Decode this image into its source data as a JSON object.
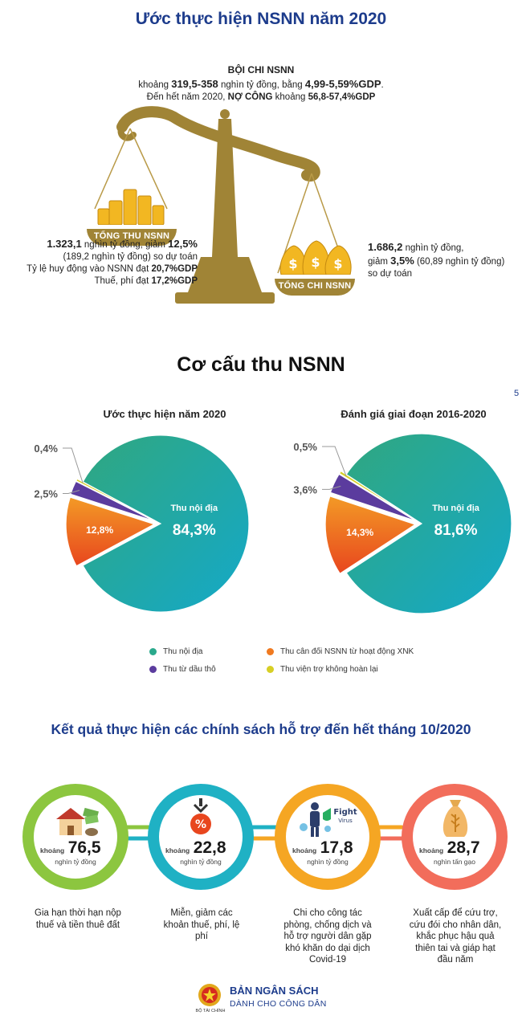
{
  "section1": {
    "title": "Ước thực hiện NSNN năm 2020",
    "deficit": {
      "heading": "BỘI CHI NSNN",
      "line1_pre": "khoảng ",
      "line1_val": "319,5-358",
      "line1_mid": " nghìn tỷ đồng, bằng ",
      "line1_pct": "4,99-5,59%GDP",
      "line1_end": ".",
      "line2_pre": "Đến hết năm 2020, ",
      "line2_debt": "NỢ CÔNG",
      "line2_mid": " khoảng ",
      "line2_val": "56,8-57,4%GDP"
    },
    "revenue": {
      "tag": "TỔNG THU NSNN",
      "val": "1.323,1",
      "mid": " nghìn tỷ đồng, giảm ",
      "pct": "12,5%",
      "line2": "(189,2 nghìn tỷ đồng) so dự toán",
      "line3_pre": "Tỷ lệ huy động vào NSNN đạt ",
      "line3_val": "20,7%GDP",
      "line4_pre": "Thuế, phí đạt ",
      "line4_val": "17,2%GDP"
    },
    "expenditure": {
      "tag": "TỔNG CHI NSNN",
      "val": "1.686,2",
      "mid": " nghìn tỷ đồng,",
      "line2_pre": "giảm ",
      "line2_pct": "3,5%",
      "line2_rest": " (60,89 nghìn tỷ đồng)",
      "line3": "so dự toán"
    }
  },
  "section2": {
    "title": "Cơ cấu thu NSNN",
    "page_num": "5",
    "inside_label": "Thu nội địa",
    "legend": [
      {
        "label": "Thu nội địa",
        "color": "#2aa98c"
      },
      {
        "label": "Thu cân đối NSNN từ hoạt động XNK",
        "color": "#f07a20"
      },
      {
        "label": "Thu từ dầu thô",
        "color": "#5b3c9e"
      },
      {
        "label": "Thu viện trợ không hoàn lại",
        "color": "#d7cf25"
      }
    ]
  },
  "chart_data": [
    {
      "type": "pie",
      "title": "Ước thực hiện năm 2020",
      "categories": [
        "Thu nội địa",
        "Thu cân đối NSNN từ hoạt động XNK",
        "Thu từ dầu thô",
        "Thu viện trợ không hoàn lại"
      ],
      "values": [
        84.3,
        12.8,
        2.5,
        0.4
      ],
      "labels": [
        "84,3%",
        "12,8%",
        "2,5%",
        "0,4%"
      ]
    },
    {
      "type": "pie",
      "title": "Đánh giá giai đoạn 2016-2020",
      "categories": [
        "Thu nội địa",
        "Thu cân đối NSNN từ hoạt động XNK",
        "Thu từ dầu thô",
        "Thu viện trợ không hoàn lại"
      ],
      "values": [
        81.6,
        14.3,
        3.6,
        0.5
      ],
      "labels": [
        "81,6%",
        "14,3%",
        "3,6%",
        "0,5%"
      ]
    }
  ],
  "section3": {
    "title": "Kết quả thực hiện các chính sách hỗ trợ đến hết tháng 10/2020",
    "items": [
      {
        "prefix": "khoảng",
        "value": "76,5",
        "unit": "nghìn tỷ đồng",
        "desc": "Gia hạn thời hạn nộp thuế và tiền thuê đất",
        "color": "#8cc63f",
        "icon": "house-money-icon"
      },
      {
        "prefix": "khoảng",
        "value": "22,8",
        "unit": "nghìn tỷ đồng",
        "desc": "Miễn, giảm các khoản thuế, phí, lệ phí",
        "color": "#1fb1c4",
        "icon": "percent-down-icon"
      },
      {
        "prefix": "khoảng",
        "value": "17,8",
        "unit": "nghìn tỷ đồng",
        "desc": "Chi cho công tác phòng, chống dịch và hỗ trợ người dân gặp khó khăn do dại dịch Covid-19",
        "color": "#f5a623",
        "icon": "fight-virus-icon",
        "icon_text": "Fight",
        "icon_sub": "Virus"
      },
      {
        "prefix": "khoảng",
        "value": "28,7",
        "unit": "nghìn tấn gạo",
        "desc": "Xuất cấp để cứu trợ, cứu đói cho nhân dân, khắc phục hậu quả thiên tai và giáp hạt đầu năm",
        "color": "#f26d5b",
        "icon": "rice-sack-icon"
      }
    ]
  },
  "footer": {
    "ministry": "BỘ TÀI CHÍNH",
    "brand1": "BẢN NGÂN SÁCH",
    "brand2": "DÀNH CHO CÔNG DÂN"
  }
}
